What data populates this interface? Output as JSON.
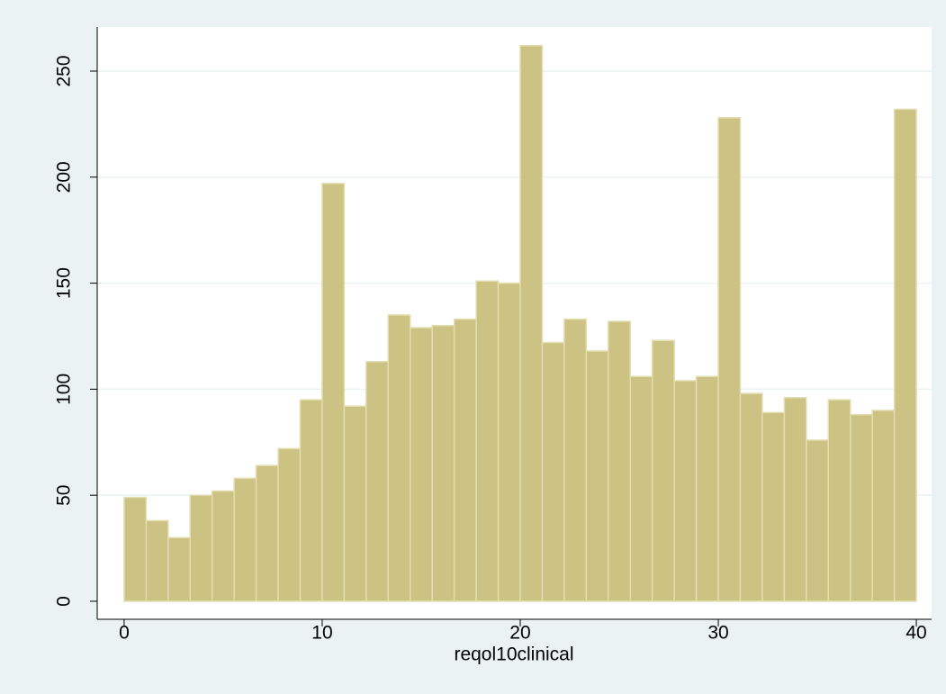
{
  "chart_data": {
    "type": "histogram",
    "x_label": "reqol10clinical",
    "bins": [
      0,
      1.111,
      2.222,
      3.333,
      4.444,
      5.556,
      6.667,
      7.778,
      8.889,
      10,
      11.111,
      12.222,
      13.333,
      14.444,
      15.556,
      16.667,
      17.778,
      18.889,
      20,
      21.111,
      22.222,
      23.333,
      24.444,
      25.556,
      26.667,
      27.778,
      28.889,
      30,
      31.111,
      32.222,
      33.333,
      34.444,
      35.556,
      36.667,
      37.778,
      38.889,
      40
    ],
    "counts": [
      49,
      38,
      30,
      50,
      52,
      58,
      64,
      72,
      95,
      197,
      92,
      113,
      135,
      129,
      130,
      133,
      151,
      150,
      262,
      122,
      133,
      118,
      132,
      106,
      123,
      104,
      106,
      228,
      98,
      89,
      96,
      76,
      95,
      88,
      90,
      232
    ],
    "color": "#cbc283",
    "xlim": [
      -1.36,
      40.77
    ],
    "xticks": [
      0,
      10,
      20,
      30,
      40
    ],
    "ylim": [
      -8.5,
      270.8
    ],
    "yticks": [
      0,
      50,
      100,
      150,
      200,
      250
    ],
    "grid": true
  }
}
